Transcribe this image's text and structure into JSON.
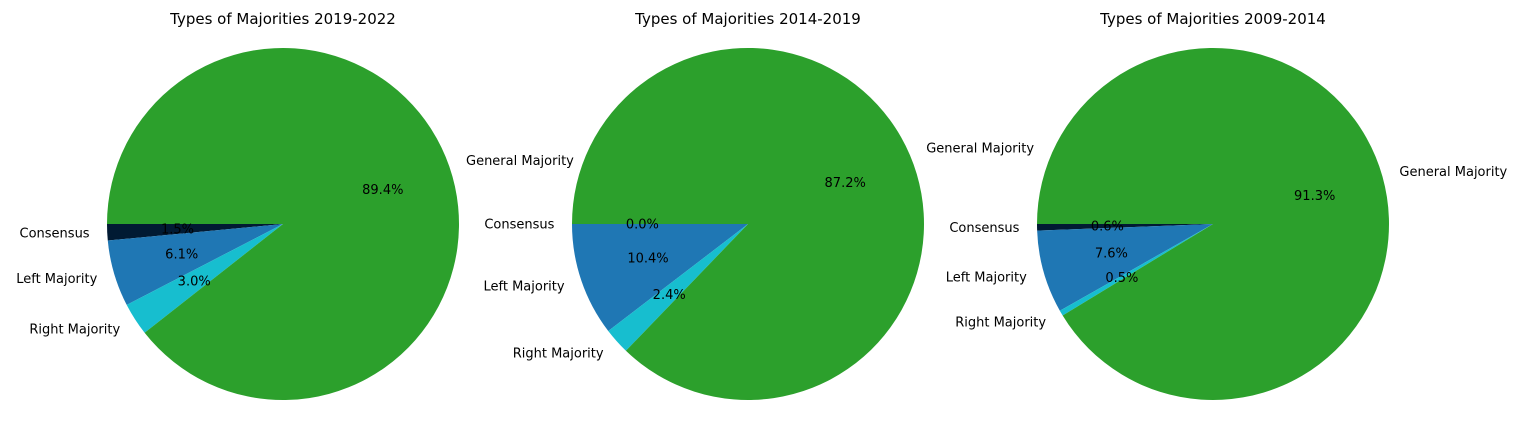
{
  "chart_data": [
    {
      "type": "pie",
      "title": "Types of Majorities 2019-2022",
      "slices": [
        {
          "label": "Consensus",
          "value": 1.5,
          "pct_label": "1.5%",
          "color": "#011a33"
        },
        {
          "label": "Left Majority",
          "value": 6.1,
          "pct_label": "6.1%",
          "color": "#1f77b4"
        },
        {
          "label": "Right Majority",
          "value": 3.0,
          "pct_label": "3.0%",
          "color": "#17becf"
        },
        {
          "label": "General Majority",
          "value": 89.4,
          "pct_label": "89.4%",
          "color": "#2ca02c"
        }
      ]
    },
    {
      "type": "pie",
      "title": "Types of Majorities 2014-2019",
      "slices": [
        {
          "label": "Consensus",
          "value": 0.0,
          "pct_label": "0.0%",
          "color": "#011a33"
        },
        {
          "label": "Left Majority",
          "value": 10.4,
          "pct_label": "10.4%",
          "color": "#1f77b4"
        },
        {
          "label": "Right Majority",
          "value": 2.4,
          "pct_label": "2.4%",
          "color": "#17becf"
        },
        {
          "label": "General Majority",
          "value": 87.2,
          "pct_label": "87.2%",
          "color": "#2ca02c"
        }
      ]
    },
    {
      "type": "pie",
      "title": "Types of Majorities 2009-2014",
      "slices": [
        {
          "label": "Consensus",
          "value": 0.6,
          "pct_label": "0.6%",
          "color": "#011a33"
        },
        {
          "label": "Left Majority",
          "value": 7.6,
          "pct_label": "7.6%",
          "color": "#1f77b4"
        },
        {
          "label": "Right Majority",
          "value": 0.5,
          "pct_label": "0.5%",
          "color": "#17becf"
        },
        {
          "label": "General Majority",
          "value": 91.3,
          "pct_label": "91.3%",
          "color": "#2ca02c"
        }
      ]
    }
  ]
}
